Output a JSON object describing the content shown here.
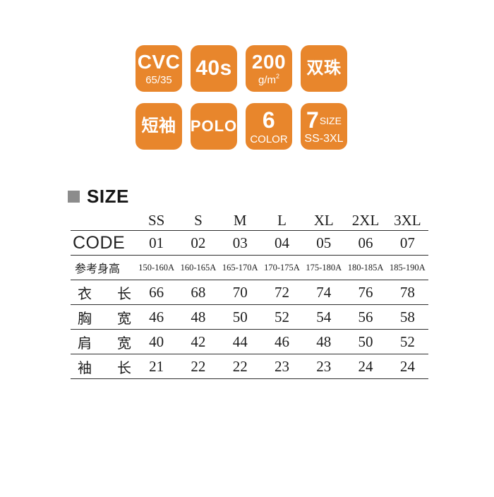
{
  "badges": {
    "tile_color": "#E8862C",
    "text_color": "#FFFFFF",
    "items": [
      {
        "main": "CVC",
        "sub": "65/35"
      },
      {
        "main": "40s"
      },
      {
        "main": "200",
        "sub": "g/m",
        "sup": "2"
      },
      {
        "main": "双珠"
      },
      {
        "main": "短袖"
      },
      {
        "main": "POLO"
      },
      {
        "main": "6",
        "sub": "COLOR"
      },
      {
        "big": "7",
        "tag": "SIZE",
        "sub": "SS-3XL"
      }
    ]
  },
  "size_section": {
    "title": "SIZE",
    "bullet_color": "#8C8C8C"
  },
  "size_table": {
    "columns": [
      "SS",
      "S",
      "M",
      "L",
      "XL",
      "2XL",
      "3XL"
    ],
    "rows": [
      {
        "label_parts": [
          "CODE"
        ],
        "values": [
          "01",
          "02",
          "03",
          "04",
          "05",
          "06",
          "07"
        ]
      },
      {
        "label_parts": [
          "参考身高"
        ],
        "values": [
          "150-160A",
          "160-165A",
          "165-170A",
          "170-175A",
          "175-180A",
          "180-185A",
          "185-190A"
        ]
      },
      {
        "label_parts": [
          "衣",
          "长"
        ],
        "values": [
          "66",
          "68",
          "70",
          "72",
          "74",
          "76",
          "78"
        ]
      },
      {
        "label_parts": [
          "胸",
          "宽"
        ],
        "values": [
          "46",
          "48",
          "50",
          "52",
          "54",
          "56",
          "58"
        ]
      },
      {
        "label_parts": [
          "肩",
          "宽"
        ],
        "values": [
          "40",
          "42",
          "44",
          "46",
          "48",
          "50",
          "52"
        ]
      },
      {
        "label_parts": [
          "袖",
          "长"
        ],
        "values": [
          "21",
          "22",
          "22",
          "23",
          "23",
          "24",
          "24"
        ]
      }
    ]
  }
}
